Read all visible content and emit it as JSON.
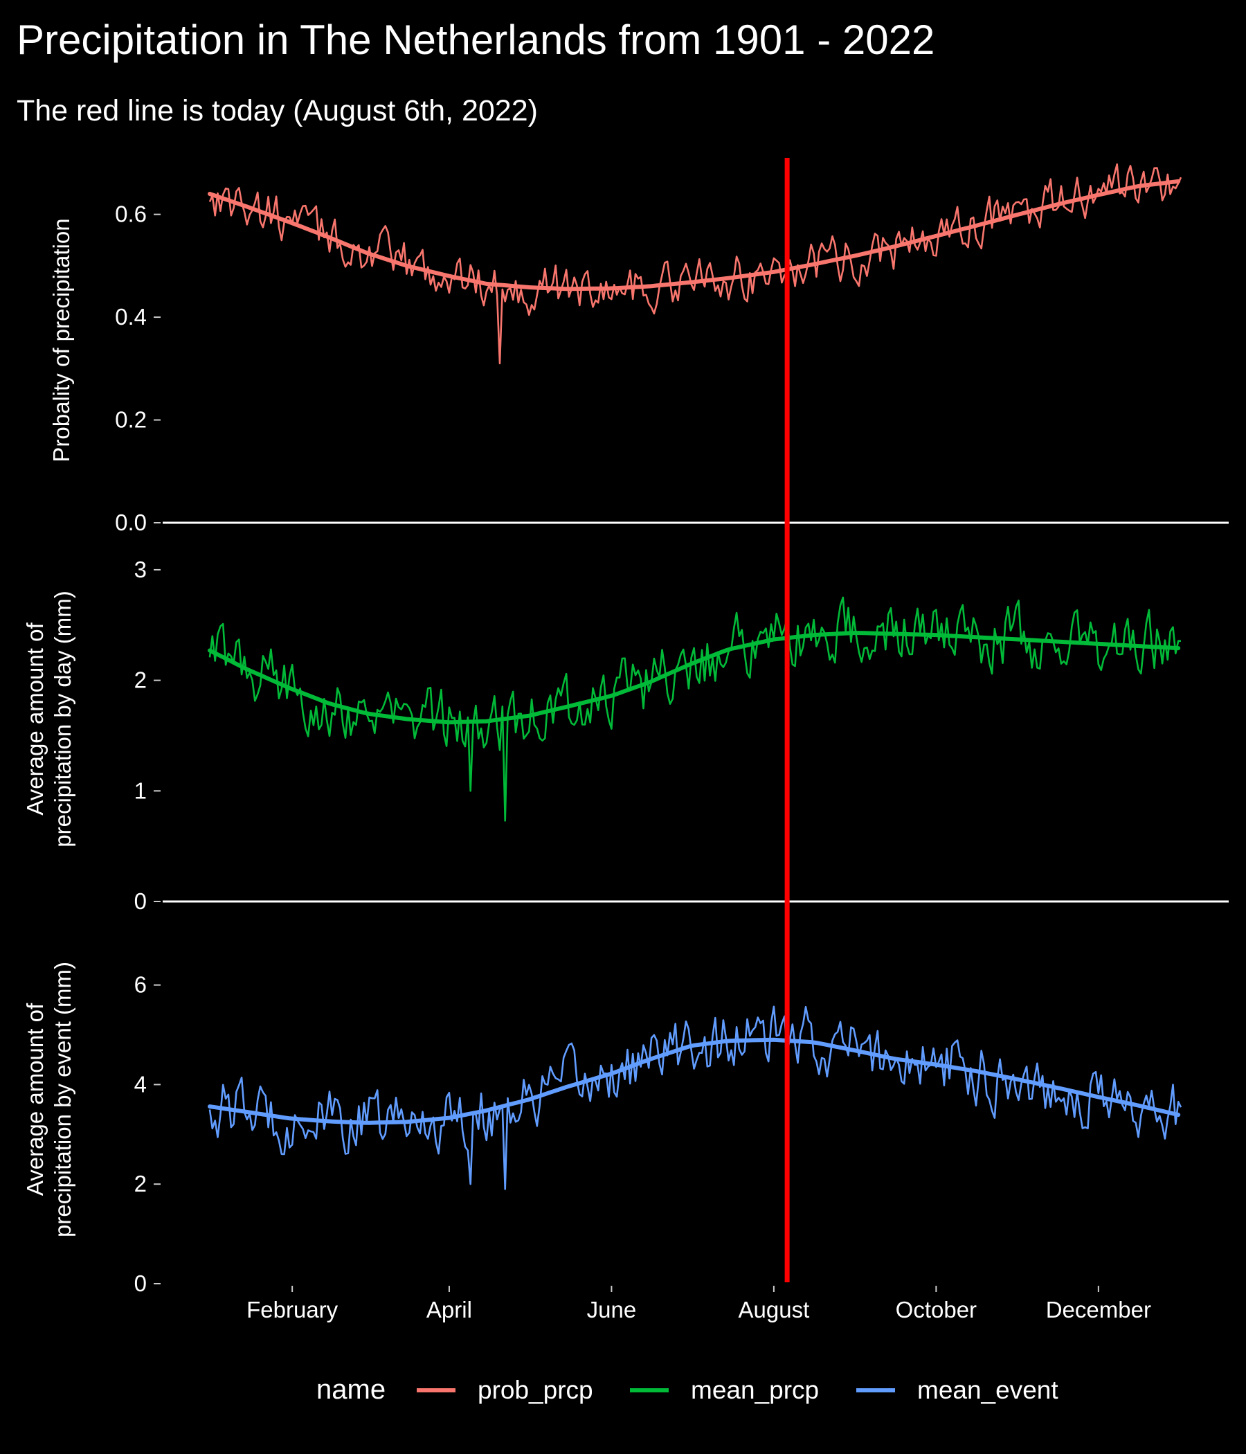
{
  "chart_data": {
    "type": "line",
    "title": "Precipitation in The Netherlands from 1901 - 2022",
    "subtitle": "The red line is today (August 6th, 2022)",
    "x_axis": {
      "type": "day-of-year",
      "ticks": [
        {
          "label": "February",
          "day": 32
        },
        {
          "label": "April",
          "day": 91
        },
        {
          "label": "June",
          "day": 152
        },
        {
          "label": "August",
          "day": 213
        },
        {
          "label": "October",
          "day": 274
        },
        {
          "label": "December",
          "day": 335
        }
      ]
    },
    "today_marker": {
      "day": 218,
      "color": "#ff0000"
    },
    "legend": {
      "title": "name",
      "position": "bottom",
      "entries": [
        {
          "label": "prob_prcp",
          "color": "#f8766d"
        },
        {
          "label": "mean_prcp",
          "color": "#00ba38"
        },
        {
          "label": "mean_event",
          "color": "#619cff"
        }
      ]
    },
    "panels": [
      {
        "key": "prob_prcp",
        "ylabel": [
          "Probality of precipitation"
        ],
        "ylim": [
          0,
          0.71
        ],
        "yticks": [
          0.0,
          0.2,
          0.4,
          0.6
        ],
        "ytick_labels": [
          "0.0",
          "0.2",
          "0.4",
          "0.6"
        ],
        "color": "#f8766d",
        "smooth": [
          [
            1,
            0.64
          ],
          [
            15,
            0.615
          ],
          [
            31,
            0.585
          ],
          [
            46,
            0.555
          ],
          [
            60,
            0.525
          ],
          [
            75,
            0.5
          ],
          [
            91,
            0.48
          ],
          [
            105,
            0.465
          ],
          [
            121,
            0.458
          ],
          [
            135,
            0.455
          ],
          [
            152,
            0.456
          ],
          [
            166,
            0.46
          ],
          [
            182,
            0.468
          ],
          [
            196,
            0.476
          ],
          [
            213,
            0.488
          ],
          [
            228,
            0.503
          ],
          [
            244,
            0.52
          ],
          [
            258,
            0.537
          ],
          [
            274,
            0.558
          ],
          [
            289,
            0.578
          ],
          [
            305,
            0.6
          ],
          [
            320,
            0.62
          ],
          [
            335,
            0.638
          ],
          [
            350,
            0.655
          ],
          [
            366,
            0.665
          ]
        ],
        "noise": 0.045,
        "dips": [
          [
            110,
            0.31
          ]
        ]
      },
      {
        "key": "mean_prcp",
        "ylabel": [
          "Average amount of",
          "precipitation by day (mm)"
        ],
        "ylim": [
          0,
          3.3
        ],
        "yticks": [
          0,
          1,
          2,
          3
        ],
        "ytick_labels": [
          "0",
          "1",
          "2",
          "3"
        ],
        "color": "#00ba38",
        "smooth": [
          [
            1,
            2.27
          ],
          [
            15,
            2.1
          ],
          [
            31,
            1.93
          ],
          [
            46,
            1.79
          ],
          [
            60,
            1.7
          ],
          [
            75,
            1.65
          ],
          [
            91,
            1.62
          ],
          [
            105,
            1.63
          ],
          [
            121,
            1.68
          ],
          [
            135,
            1.76
          ],
          [
            152,
            1.86
          ],
          [
            166,
            1.98
          ],
          [
            182,
            2.15
          ],
          [
            196,
            2.28
          ],
          [
            213,
            2.37
          ],
          [
            228,
            2.41
          ],
          [
            244,
            2.43
          ],
          [
            258,
            2.42
          ],
          [
            274,
            2.41
          ],
          [
            289,
            2.39
          ],
          [
            305,
            2.37
          ],
          [
            320,
            2.35
          ],
          [
            335,
            2.33
          ],
          [
            350,
            2.31
          ],
          [
            366,
            2.29
          ]
        ],
        "noise": 0.28,
        "dips": [
          [
            112,
            0.73
          ],
          [
            99,
            1.0
          ]
        ]
      },
      {
        "key": "mean_event",
        "ylabel": [
          "Average amount of",
          "precipitation by event (mm)"
        ],
        "ylim": [
          0,
          7.4
        ],
        "yticks": [
          0,
          2,
          4,
          6
        ],
        "ytick_labels": [
          "0",
          "2",
          "4",
          "6"
        ],
        "color": "#619cff",
        "smooth": [
          [
            1,
            3.56
          ],
          [
            15,
            3.45
          ],
          [
            31,
            3.32
          ],
          [
            46,
            3.26
          ],
          [
            60,
            3.23
          ],
          [
            75,
            3.25
          ],
          [
            91,
            3.33
          ],
          [
            105,
            3.48
          ],
          [
            121,
            3.7
          ],
          [
            135,
            3.95
          ],
          [
            152,
            4.22
          ],
          [
            166,
            4.5
          ],
          [
            182,
            4.78
          ],
          [
            196,
            4.88
          ],
          [
            213,
            4.9
          ],
          [
            228,
            4.85
          ],
          [
            244,
            4.68
          ],
          [
            258,
            4.52
          ],
          [
            274,
            4.4
          ],
          [
            289,
            4.27
          ],
          [
            305,
            4.1
          ],
          [
            320,
            3.93
          ],
          [
            335,
            3.75
          ],
          [
            350,
            3.58
          ],
          [
            366,
            3.38
          ]
        ],
        "noise": 0.62,
        "dips": [
          [
            112,
            1.9
          ],
          [
            99,
            2.0
          ]
        ]
      }
    ]
  }
}
